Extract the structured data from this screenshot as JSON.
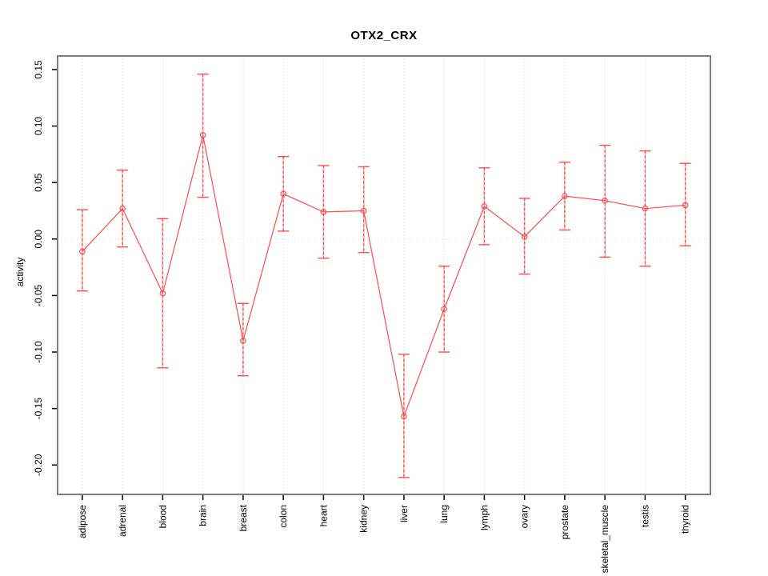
{
  "figure": {
    "background": "#ffffff"
  },
  "chart_data": {
    "type": "line",
    "title": "OTX2_CRX",
    "xlabel": "",
    "ylabel": "activity",
    "legend_position": "none",
    "categories": [
      "adipose",
      "adrenal",
      "blood",
      "brain",
      "breast",
      "colon",
      "heart",
      "kidney",
      "liver",
      "lung",
      "lymph",
      "ovary",
      "prostate",
      "skeletal_muscle",
      "testis",
      "thyroid"
    ],
    "series": [
      {
        "name": "OTX2_CRX activity",
        "marker": "open-circle",
        "values": [
          -0.011,
          0.027,
          -0.048,
          0.092,
          -0.09,
          0.04,
          0.024,
          0.025,
          -0.157,
          -0.062,
          0.029,
          0.002,
          0.038,
          0.034,
          0.027,
          0.03
        ],
        "error_upper": [
          0.026,
          0.061,
          0.018,
          0.146,
          -0.057,
          0.073,
          0.065,
          0.064,
          -0.102,
          -0.024,
          0.063,
          0.036,
          0.068,
          0.083,
          0.078,
          0.067
        ],
        "error_lower": [
          -0.046,
          -0.007,
          -0.114,
          0.037,
          -0.121,
          0.007,
          -0.017,
          -0.012,
          -0.211,
          -0.1,
          -0.005,
          -0.031,
          0.008,
          -0.016,
          -0.024,
          -0.006
        ]
      }
    ],
    "ytick_values": [
      0.15,
      0.1,
      0.05,
      0.0,
      -0.05,
      -0.1,
      -0.15,
      -0.2
    ],
    "ytick_labels": [
      "0.15",
      "0.10",
      "0.05",
      "0.00",
      "-0.05",
      "-0.10",
      "-0.15",
      "-0.20"
    ],
    "ylim": [
      -0.226,
      0.162
    ],
    "grid": {
      "vertical_dotted_per_category": true,
      "horizontal_dotted_at_zero": true
    },
    "colors": {
      "series": "#ff4d4d",
      "error_stem_pale": "#ffaaaa",
      "error_stem_dash": "#ff4d4d",
      "grid": "#d6d6d6",
      "frame": "#7d7d7d",
      "text": "#000000"
    }
  }
}
